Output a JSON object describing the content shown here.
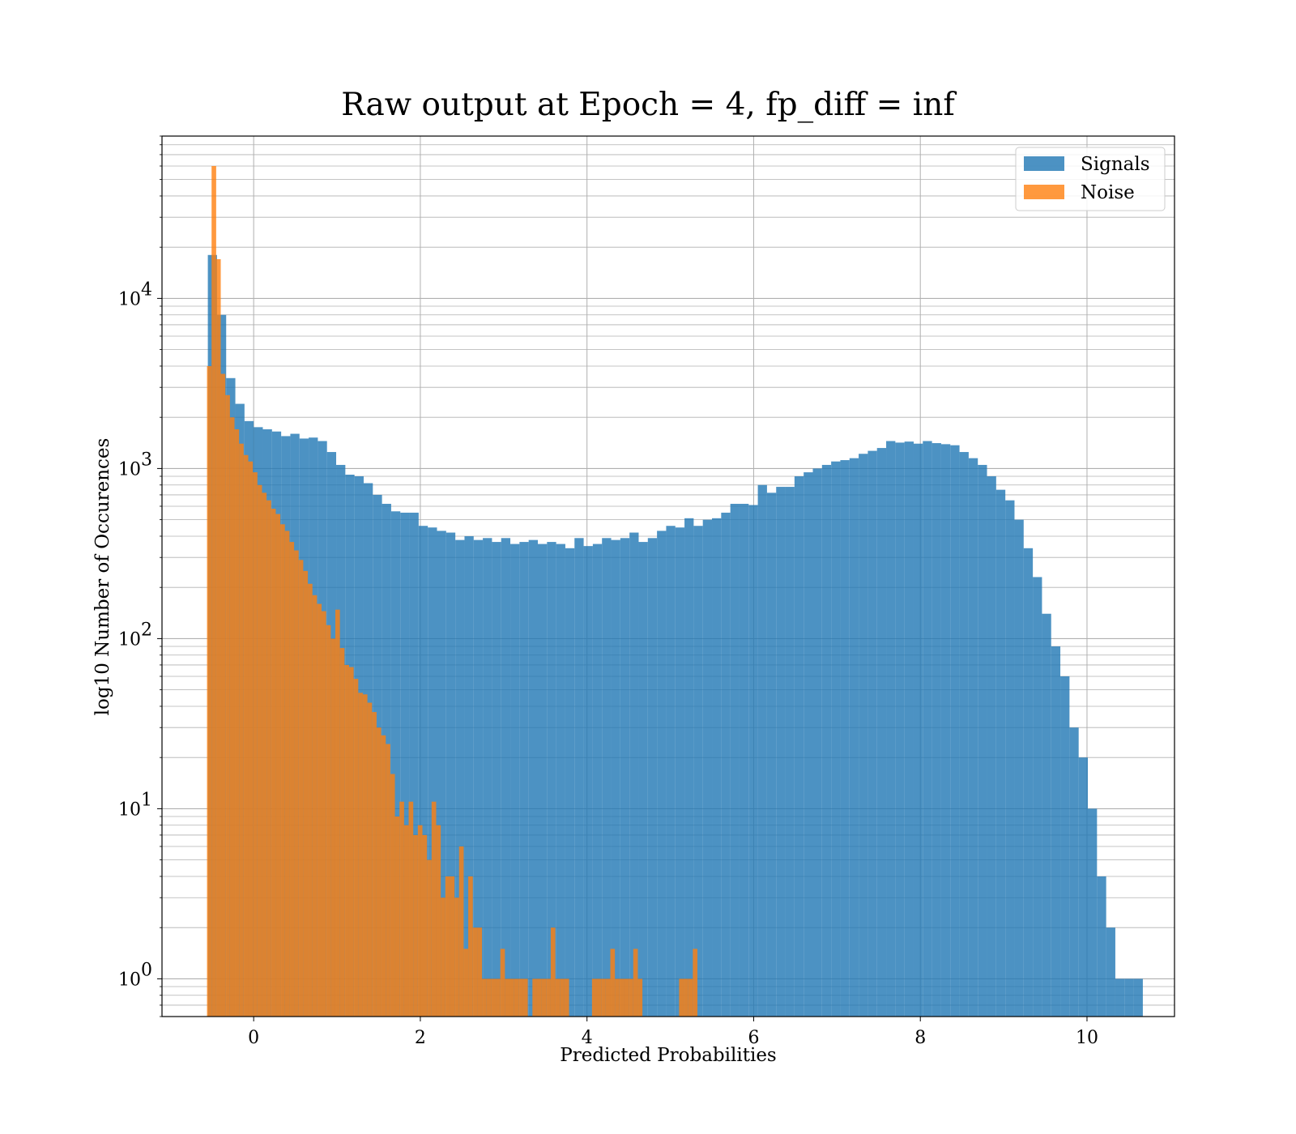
{
  "chart_data": {
    "type": "bar",
    "title": "Raw output at Epoch = 4, fp_diff = inf",
    "xlabel": "Predicted Probabilities",
    "ylabel": "log10 Number of Occurences",
    "yscale": "log",
    "xlim": [
      -1.1,
      11.05
    ],
    "ylim": [
      0.6,
      90000
    ],
    "grid": "on (major and minor)",
    "legend_placement": "upper right",
    "x_ticks": [
      {
        "value": 0,
        "label": "0"
      },
      {
        "value": 2,
        "label": "2"
      },
      {
        "value": 4,
        "label": "4"
      },
      {
        "value": 6,
        "label": "6"
      },
      {
        "value": 8,
        "label": "8"
      },
      {
        "value": 10,
        "label": "10"
      }
    ],
    "y_ticks": [
      {
        "value": 1,
        "base": "10",
        "exp": "0"
      },
      {
        "value": 10,
        "base": "10",
        "exp": "1"
      },
      {
        "value": 100,
        "base": "10",
        "exp": "2"
      },
      {
        "value": 1000,
        "base": "10",
        "exp": "3"
      },
      {
        "value": 10000,
        "base": "10",
        "exp": "4"
      }
    ],
    "colors": {
      "Signals": "#1f77b4",
      "Noise": "#ff7f0e"
    },
    "series": [
      {
        "name": "Signals",
        "bin_start": -0.55,
        "bin_width": 0.11,
        "values": [
          18000,
          8000,
          3400,
          2400,
          1900,
          1750,
          1700,
          1650,
          1550,
          1600,
          1500,
          1520,
          1450,
          1250,
          1050,
          920,
          900,
          820,
          700,
          620,
          560,
          550,
          550,
          460,
          450,
          430,
          420,
          380,
          400,
          380,
          390,
          370,
          390,
          360,
          370,
          380,
          360,
          370,
          360,
          340,
          390,
          350,
          360,
          390,
          380,
          390,
          420,
          370,
          390,
          430,
          460,
          450,
          510,
          460,
          500,
          510,
          550,
          620,
          620,
          610,
          800,
          720,
          780,
          780,
          900,
          950,
          1000,
          1050,
          1100,
          1120,
          1150,
          1220,
          1270,
          1320,
          1450,
          1420,
          1440,
          1400,
          1450,
          1410,
          1390,
          1370,
          1250,
          1150,
          1050,
          900,
          750,
          650,
          500,
          340,
          230,
          140,
          90,
          60,
          30,
          20,
          10,
          4,
          2,
          1,
          1,
          1
        ]
      },
      {
        "name": "Noise",
        "bin_start": -0.56,
        "bin_width": 0.055,
        "values": [
          4000,
          60000,
          17000,
          3600,
          2700,
          2000,
          1700,
          1400,
          1200,
          1100,
          950,
          800,
          720,
          650,
          580,
          540,
          470,
          430,
          370,
          330,
          290,
          250,
          210,
          180,
          160,
          145,
          120,
          100,
          148,
          88,
          70,
          68,
          58,
          48,
          47,
          42,
          37,
          30,
          27,
          24,
          16,
          9,
          11,
          8,
          11,
          7,
          8,
          7,
          5,
          11,
          8,
          3,
          4,
          4,
          3,
          6,
          1.5,
          4,
          2,
          2,
          1,
          1,
          1,
          1,
          1.5,
          1,
          1,
          1,
          1,
          1,
          0,
          1,
          1,
          1,
          1,
          2,
          1,
          1,
          1,
          0,
          0,
          0,
          0,
          0,
          1,
          1,
          1,
          1,
          1.5,
          1,
          1,
          1,
          1,
          1.5,
          1,
          0,
          0,
          0,
          0,
          0,
          0,
          0,
          0,
          1,
          1,
          1,
          1.5
        ]
      }
    ]
  }
}
